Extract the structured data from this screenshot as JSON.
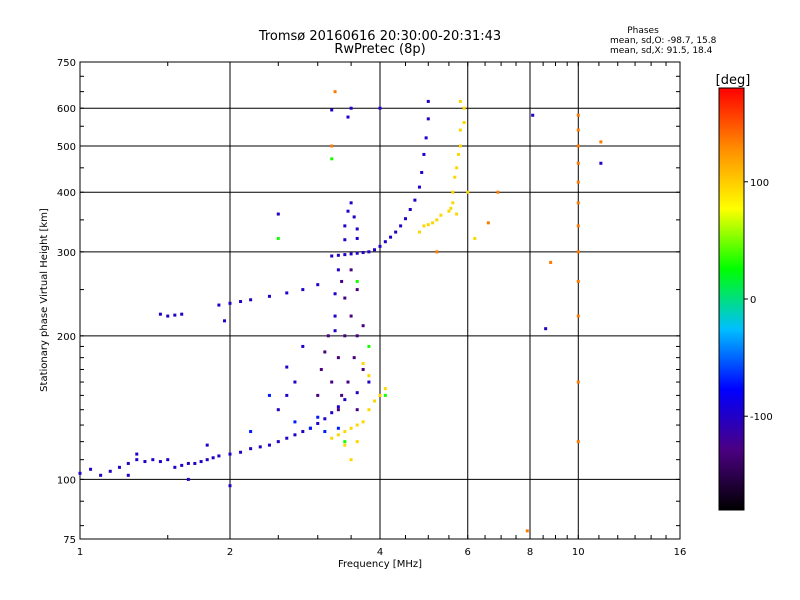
{
  "chart_data": {
    "type": "scatter",
    "title": "Tromsø 20160616 20:30:00-20:31:43",
    "subtitle": "RwPretec (8p)",
    "xlabel": "Frequency [MHz]",
    "ylabel": "Stationary phase Virtual Height [km]",
    "x_scale": "log",
    "y_scale": "log",
    "xlim": [
      1,
      16
    ],
    "ylim": [
      75,
      750
    ],
    "x_ticks": [
      1,
      2,
      4,
      6,
      8,
      10,
      16
    ],
    "y_ticks": [
      75,
      100,
      200,
      300,
      400,
      500,
      600,
      750
    ],
    "grid": true,
    "stats": {
      "heading": "Phases",
      "line1": "mean, sd,O: -98.7, 15.8",
      "line2": "mean, sd,X:  91.5, 18.4"
    },
    "colorbar": {
      "label": "[deg]",
      "ticks": [
        100,
        0,
        -100
      ],
      "range": [
        -180,
        180
      ],
      "colors": [
        "#000000",
        "#4b0082",
        "#0000ff",
        "#00bfff",
        "#00ff00",
        "#ffff00",
        "#ff8c00",
        "#ff0000"
      ]
    },
    "series": [
      {
        "phase_deg": -100,
        "points": [
          [
            1.0,
            103
          ],
          [
            1.05,
            105
          ],
          [
            1.1,
            102
          ],
          [
            1.15,
            104
          ],
          [
            1.2,
            106
          ],
          [
            1.25,
            108
          ],
          [
            1.3,
            110
          ],
          [
            1.35,
            109
          ],
          [
            1.4,
            110
          ],
          [
            1.45,
            109
          ],
          [
            1.5,
            110
          ],
          [
            1.55,
            106
          ],
          [
            1.6,
            107
          ],
          [
            1.65,
            108
          ],
          [
            1.7,
            108
          ],
          [
            1.75,
            109
          ],
          [
            1.8,
            110
          ],
          [
            1.85,
            111
          ],
          [
            1.9,
            112
          ],
          [
            2.0,
            113
          ],
          [
            2.1,
            114
          ],
          [
            2.2,
            116
          ],
          [
            2.3,
            117
          ],
          [
            2.4,
            118
          ],
          [
            2.5,
            120
          ],
          [
            2.6,
            122
          ],
          [
            2.7,
            124
          ],
          [
            2.8,
            126
          ],
          [
            2.9,
            128
          ],
          [
            3.0,
            131
          ],
          [
            3.1,
            134
          ],
          [
            3.2,
            138
          ],
          [
            3.3,
            142
          ],
          [
            3.4,
            147
          ],
          [
            3.6,
            152
          ],
          [
            3.8,
            160
          ],
          [
            1.45,
            222
          ],
          [
            1.5,
            220
          ],
          [
            1.55,
            221
          ],
          [
            1.6,
            222
          ],
          [
            1.9,
            232
          ],
          [
            2.0,
            234
          ],
          [
            2.1,
            236
          ],
          [
            2.2,
            238
          ],
          [
            2.4,
            242
          ],
          [
            2.6,
            246
          ],
          [
            2.8,
            250
          ],
          [
            3.0,
            256
          ],
          [
            3.2,
            294
          ],
          [
            3.3,
            295
          ],
          [
            3.4,
            296
          ],
          [
            3.5,
            297
          ],
          [
            3.6,
            298
          ],
          [
            3.7,
            299
          ],
          [
            3.8,
            300
          ],
          [
            3.9,
            303
          ],
          [
            4.0,
            308
          ],
          [
            4.1,
            315
          ],
          [
            4.2,
            322
          ],
          [
            4.3,
            330
          ],
          [
            4.4,
            340
          ],
          [
            4.5,
            352
          ],
          [
            4.6,
            368
          ],
          [
            4.7,
            385
          ],
          [
            4.8,
            410
          ],
          [
            4.85,
            440
          ],
          [
            4.9,
            480
          ],
          [
            4.95,
            520
          ],
          [
            5.0,
            570
          ],
          [
            5.0,
            620
          ],
          [
            3.25,
            205
          ],
          [
            3.25,
            220
          ],
          [
            3.25,
            245
          ],
          [
            3.3,
            275
          ],
          [
            3.4,
            318
          ],
          [
            3.4,
            340
          ],
          [
            3.45,
            365
          ],
          [
            3.5,
            380
          ],
          [
            3.55,
            355
          ],
          [
            3.6,
            335
          ],
          [
            3.6,
            320
          ],
          [
            2.5,
            360
          ],
          [
            2.5,
            140
          ],
          [
            2.6,
            150
          ],
          [
            2.6,
            172
          ],
          [
            2.7,
            160
          ],
          [
            2.8,
            190
          ],
          [
            1.65,
            100
          ],
          [
            2.0,
            97
          ],
          [
            1.25,
            102
          ],
          [
            3.2,
            595
          ],
          [
            3.5,
            600
          ],
          [
            3.45,
            575
          ],
          [
            4.0,
            600
          ],
          [
            8.1,
            580
          ],
          [
            8.6,
            207
          ],
          [
            11.1,
            460
          ],
          [
            1.95,
            215
          ],
          [
            1.3,
            113
          ],
          [
            1.8,
            118
          ]
        ]
      },
      {
        "phase_deg": -130,
        "points": [
          [
            3.0,
            150
          ],
          [
            3.05,
            170
          ],
          [
            3.1,
            185
          ],
          [
            3.15,
            200
          ],
          [
            3.2,
            160
          ],
          [
            3.3,
            140
          ],
          [
            3.3,
            180
          ],
          [
            3.35,
            150
          ],
          [
            3.4,
            200
          ],
          [
            3.4,
            240
          ],
          [
            3.45,
            160
          ],
          [
            3.5,
            220
          ],
          [
            3.5,
            275
          ],
          [
            3.55,
            180
          ],
          [
            3.6,
            200
          ],
          [
            3.6,
            250
          ],
          [
            3.6,
            140
          ],
          [
            3.7,
            170
          ],
          [
            3.7,
            210
          ],
          [
            3.35,
            260
          ]
        ]
      },
      {
        "phase_deg": 95,
        "points": [
          [
            3.2,
            122
          ],
          [
            3.3,
            124
          ],
          [
            3.4,
            126
          ],
          [
            3.5,
            128
          ],
          [
            3.6,
            130
          ],
          [
            3.7,
            132
          ],
          [
            3.8,
            140
          ],
          [
            3.9,
            146
          ],
          [
            4.0,
            150
          ],
          [
            3.8,
            165
          ],
          [
            3.7,
            175
          ],
          [
            3.5,
            110
          ],
          [
            3.6,
            120
          ],
          [
            3.4,
            118
          ],
          [
            4.1,
            155
          ],
          [
            4.8,
            330
          ],
          [
            4.9,
            340
          ],
          [
            5.0,
            342
          ],
          [
            5.1,
            345
          ],
          [
            5.2,
            350
          ],
          [
            5.3,
            358
          ],
          [
            5.5,
            365
          ],
          [
            5.55,
            370
          ],
          [
            5.6,
            380
          ],
          [
            5.6,
            400
          ],
          [
            5.65,
            430
          ],
          [
            5.7,
            450
          ],
          [
            5.75,
            480
          ],
          [
            5.8,
            500
          ],
          [
            5.8,
            540
          ],
          [
            5.9,
            560
          ],
          [
            5.9,
            600
          ],
          [
            5.8,
            620
          ],
          [
            5.7,
            360
          ],
          [
            6.0,
            400
          ],
          [
            6.2,
            320
          ]
        ]
      },
      {
        "phase_deg": 135,
        "points": [
          [
            3.2,
            500
          ],
          [
            3.25,
            650
          ],
          [
            10.0,
            120
          ],
          [
            10.0,
            160
          ],
          [
            10.0,
            220
          ],
          [
            10.0,
            260
          ],
          [
            10.0,
            300
          ],
          [
            10.0,
            340
          ],
          [
            10.0,
            380
          ],
          [
            10.0,
            420
          ],
          [
            10.0,
            460
          ],
          [
            10.0,
            500
          ],
          [
            10.0,
            540
          ],
          [
            10.0,
            580
          ],
          [
            7.9,
            78
          ],
          [
            8.8,
            285
          ],
          [
            6.9,
            400
          ],
          [
            11.1,
            510
          ],
          [
            5.2,
            300
          ],
          [
            6.6,
            345
          ]
        ]
      },
      {
        "phase_deg": 30,
        "points": [
          [
            3.2,
            470
          ],
          [
            2.5,
            320
          ],
          [
            3.6,
            260
          ],
          [
            3.8,
            190
          ],
          [
            3.4,
            120
          ],
          [
            4.1,
            150
          ]
        ]
      },
      {
        "phase_deg": -70,
        "points": [
          [
            2.4,
            150
          ],
          [
            2.7,
            132
          ],
          [
            2.9,
            128
          ],
          [
            3.1,
            126
          ],
          [
            2.2,
            126
          ],
          [
            3.3,
            128
          ],
          [
            3.0,
            135
          ]
        ]
      }
    ]
  }
}
